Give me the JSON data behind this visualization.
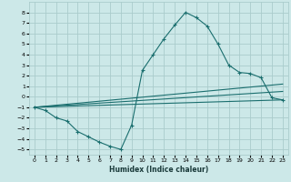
{
  "xlabel": "Humidex (Indice chaleur)",
  "ylabel": "",
  "background_color": "#cce8e8",
  "grid_color": "#aacccc",
  "line_color": "#1a6e6e",
  "xlim": [
    -0.5,
    23.5
  ],
  "ylim": [
    -5.5,
    9.0
  ],
  "xticks": [
    0,
    1,
    2,
    3,
    4,
    5,
    6,
    7,
    8,
    9,
    10,
    11,
    12,
    13,
    14,
    15,
    16,
    17,
    18,
    19,
    20,
    21,
    22,
    23
  ],
  "yticks": [
    -5,
    -4,
    -3,
    -2,
    -1,
    0,
    1,
    2,
    3,
    4,
    5,
    6,
    7,
    8
  ],
  "series1_x": [
    0,
    1,
    2,
    3,
    4,
    5,
    6,
    7,
    8,
    9,
    10,
    11,
    12,
    13,
    14,
    15,
    16,
    17,
    18,
    19,
    20,
    21,
    22,
    23
  ],
  "series1_y": [
    -1,
    -1.3,
    -2,
    -2.3,
    -3.3,
    -3.8,
    -4.3,
    -4.7,
    -5,
    -2.7,
    2.5,
    4,
    5.5,
    6.8,
    8,
    7.5,
    6.7,
    5,
    3,
    2.3,
    2.2,
    1.8,
    -0.1,
    -0.3
  ],
  "series2_x": [
    0,
    23
  ],
  "series2_y": [
    -1,
    -0.3
  ],
  "series3_x": [
    0,
    23
  ],
  "series3_y": [
    -1,
    0.5
  ],
  "series4_x": [
    0,
    23
  ],
  "series4_y": [
    -1,
    1.2
  ]
}
